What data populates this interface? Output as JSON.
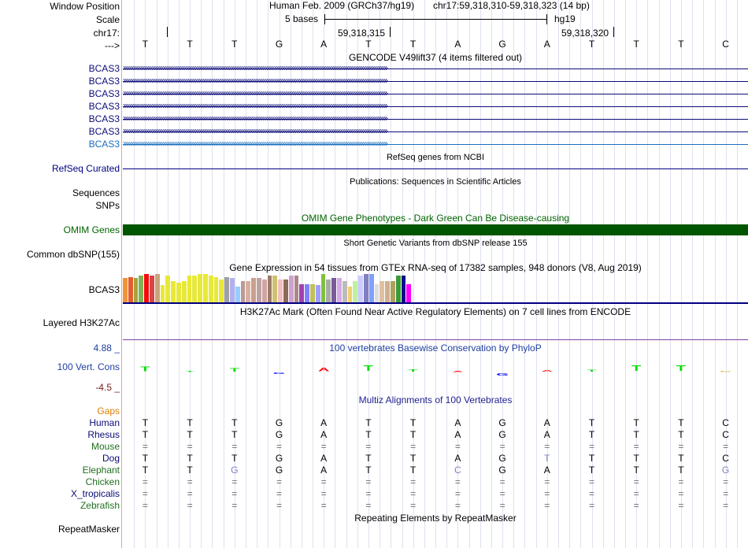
{
  "header": {
    "window_position_label": "Window Position",
    "scale_label": "Scale",
    "chrom_label": "chr17:",
    "strand_label": "--->",
    "assembly": "Human Feb. 2009 (GRCh37/hg19)",
    "position": "chr17:59,318,310-59,318,323 (14 bp)",
    "scale_text": "5 bases",
    "db": "hg19",
    "coord1": "59,318,315",
    "coord2": "59,318,320"
  },
  "bases": [
    "T",
    "T",
    "T",
    "G",
    "A",
    "T",
    "T",
    "A",
    "G",
    "A",
    "T",
    "T",
    "T",
    "C"
  ],
  "gencode": {
    "title": "GENCODE V49lift37 (4 items filtered out)",
    "items": [
      "BCAS3",
      "BCAS3",
      "BCAS3",
      "BCAS3",
      "BCAS3",
      "BCAS3",
      "BCAS3"
    ]
  },
  "refseq": {
    "title": "RefSeq genes from NCBI",
    "label": "RefSeq Curated"
  },
  "publications": {
    "title": "Publications: Sequences in Scientific Articles",
    "label": "Sequences"
  },
  "snps": {
    "label": "SNPs"
  },
  "omim": {
    "title": "OMIM Gene Phenotypes - Dark Green Can Be Disease-causing",
    "label": "OMIM Genes",
    "color": "#005500"
  },
  "dbsnp": {
    "title": "Short Genetic Variants from dbSNP release 155",
    "label": "Common dbSNP(155)"
  },
  "gtex": {
    "title": "Gene Expression in 54 tissues from GTEx RNA-seq of 17382 samples, 948 donors (V8, Aug 2019)",
    "label": "BCAS3",
    "levels": [
      0.85,
      0.9,
      0.85,
      0.95,
      1.0,
      0.95,
      1.0,
      0.6,
      0.95,
      0.75,
      0.7,
      0.75,
      0.95,
      0.95,
      1.0,
      1.0,
      0.95,
      0.9,
      0.8,
      0.9,
      0.85,
      0.55,
      0.75,
      0.75,
      0.85,
      0.85,
      0.8,
      0.95,
      0.95,
      0.8,
      0.8,
      0.95,
      0.95,
      0.65,
      0.65,
      0.65,
      0.6,
      1.0,
      0.8,
      0.85,
      0.85,
      0.75,
      0.55,
      0.75,
      0.95,
      1.0,
      1.0,
      0.65,
      0.75,
      0.75,
      0.75,
      0.95,
      0.95,
      0.65
    ],
    "colors": [
      "#f0943b",
      "#e55d2c",
      "#a8a23d",
      "#7eb356",
      "#f30b09",
      "#d84545",
      "#c8a47e",
      "#e8e83a",
      "#e8e83a",
      "#e8e83a",
      "#e8e83a",
      "#e8e83a",
      "#e8e83a",
      "#e8e83a",
      "#e8e83a",
      "#e8e83a",
      "#e8e83a",
      "#e8e83a",
      "#e8e83a",
      "#a0a0a0",
      "#b0b0f0",
      "#99ccff",
      "#bb9999",
      "#d8b0a0",
      "#c8a090",
      "#c0a0a0",
      "#cfa5a5",
      "#9b7b6b",
      "#d0c070",
      "#f0c0c0",
      "#8a6a5a",
      "#d2a0d0",
      "#aa8888",
      "#a040b0",
      "#8080ff",
      "#c0c060",
      "#a0a0ff",
      "#80c040",
      "#aaaaaa",
      "#7a5a9a",
      "#d8a8e8",
      "#bbbbbb",
      "#f0d070",
      "#c0f0a0",
      "#ccccff",
      "#8080c0",
      "#80a0ff",
      "#dddddd",
      "#e0c0a0",
      "#d0b090",
      "#b0a060",
      "#3a9a3a",
      "#0c0c8a",
      "#ff00ff"
    ]
  },
  "h3k27ac": {
    "title": "H3K27Ac Mark (Often Found Near Active Regulatory Elements) on 7 cell lines from ENCODE",
    "label": "Layered H3K27Ac"
  },
  "phylop": {
    "title": "100 vertebrates Basewise Conservation by PhyloP",
    "label": "100 Vert. Cons",
    "max_label": "4.88 _",
    "min_label": "-4.5 _",
    "scores": [
      2.5,
      0.3,
      1.8,
      -0.8,
      2.0,
      3.0,
      1.5,
      0.1,
      -1.5,
      0.8,
      1.2,
      3.0,
      3.0,
      0.4
    ]
  },
  "multiz": {
    "title": "Multiz Alignments of 100 Vertebrates",
    "gaps_label": "Gaps",
    "species": [
      {
        "name": "Human",
        "seq": [
          "T",
          "T",
          "T",
          "G",
          "A",
          "T",
          "T",
          "A",
          "G",
          "A",
          "T",
          "T",
          "T",
          "C"
        ]
      },
      {
        "name": "Rhesus",
        "seq": [
          "T",
          "T",
          "T",
          "G",
          "A",
          "T",
          "T",
          "A",
          "G",
          "A",
          "T",
          "T",
          "T",
          "C"
        ]
      },
      {
        "name": "Mouse",
        "seq": [
          "=",
          "=",
          "=",
          "=",
          "=",
          "=",
          "=",
          "=",
          "=",
          "=",
          "=",
          "=",
          "=",
          "="
        ]
      },
      {
        "name": "Dog",
        "seq": [
          "T",
          "T",
          "T",
          "G",
          "A",
          "T",
          "T",
          "A",
          "G",
          "T",
          "T",
          "T",
          "T",
          "C"
        ]
      },
      {
        "name": "Elephant",
        "seq": [
          "T",
          "T",
          "G",
          "G",
          "A",
          "T",
          "T",
          "C",
          "G",
          "A",
          "T",
          "T",
          "T",
          "G"
        ]
      },
      {
        "name": "Chicken",
        "seq": [
          "=",
          "=",
          "=",
          "=",
          "=",
          "=",
          "=",
          "=",
          "=",
          "=",
          "=",
          "=",
          "=",
          "="
        ]
      },
      {
        "name": "X_tropicalis",
        "seq": [
          "=",
          "=",
          "=",
          "=",
          "=",
          "=",
          "=",
          "=",
          "=",
          "=",
          "=",
          "=",
          "=",
          "="
        ]
      },
      {
        "name": "Zebrafish",
        "seq": [
          "=",
          "=",
          "=",
          "=",
          "=",
          "=",
          "=",
          "=",
          "=",
          "=",
          "=",
          "=",
          "=",
          "="
        ]
      }
    ]
  },
  "repeatmasker": {
    "title": "Repeating Elements by RepeatMasker",
    "label": "RepeatMasker"
  }
}
